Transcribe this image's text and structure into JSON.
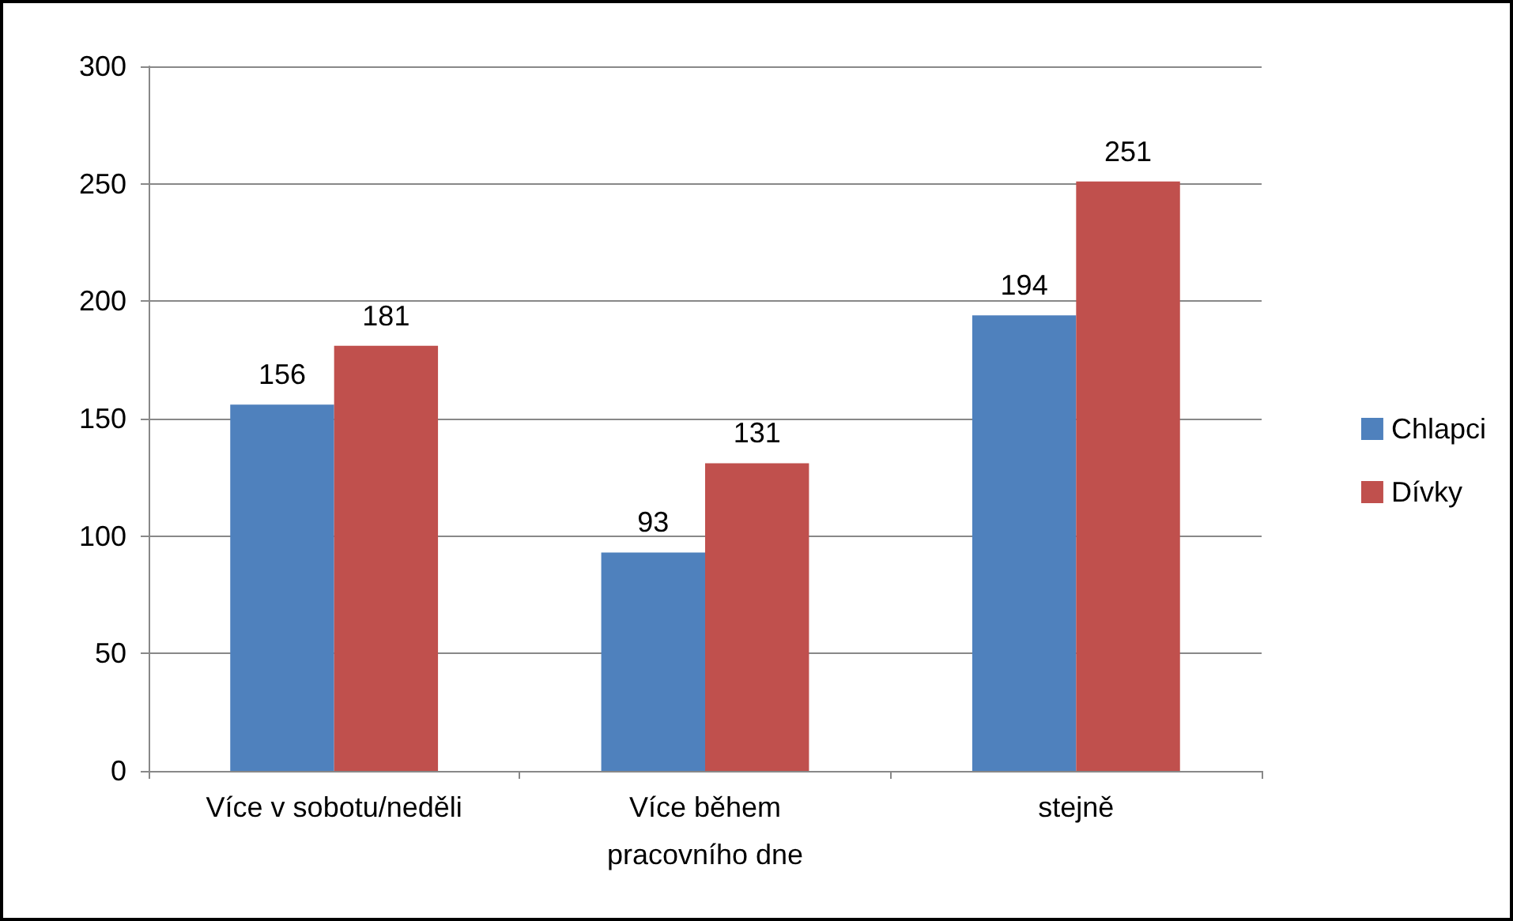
{
  "chart_data": {
    "type": "bar",
    "categories": [
      "Více v sobotu/neděli",
      "Více během\npracovního dne",
      "stejně"
    ],
    "series": [
      {
        "name": "Chlapci",
        "color": "#4f81bd",
        "values": [
          156,
          93,
          194
        ]
      },
      {
        "name": "Dívky",
        "color": "#c0504d",
        "values": [
          181,
          131,
          251
        ]
      }
    ],
    "ylim": [
      0,
      300
    ],
    "yticks": [
      0,
      50,
      100,
      150,
      200,
      250,
      300
    ],
    "grid": "y",
    "legend": "right",
    "data_labels": true
  }
}
